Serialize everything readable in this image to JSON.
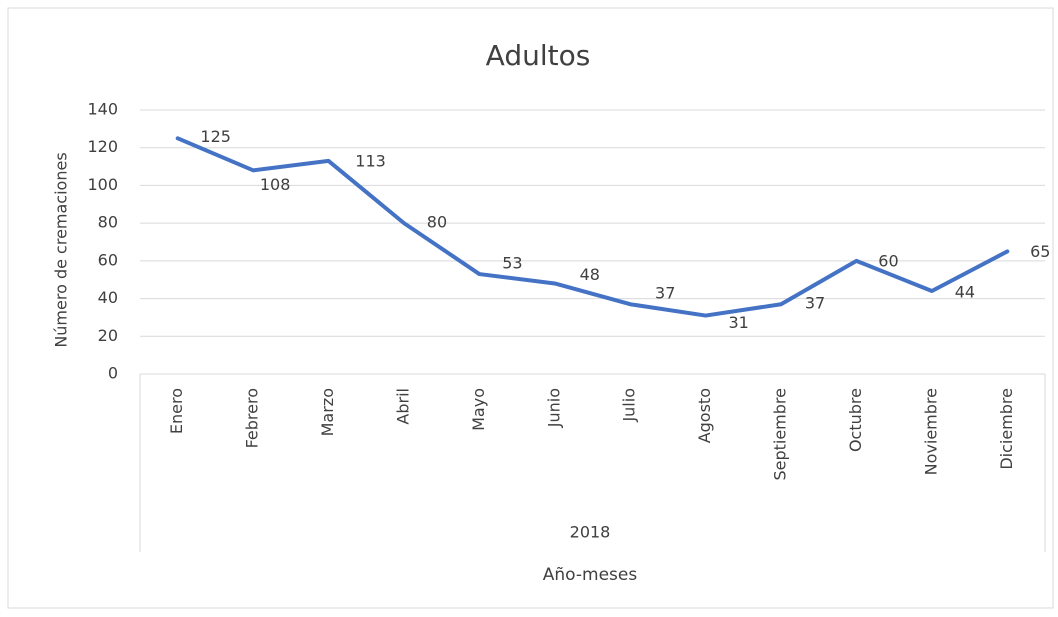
{
  "chart_data": {
    "type": "line",
    "title": "Adultos",
    "y_label": "Número de cremaciones",
    "x_label": "Año-meses",
    "group_label": "2018",
    "categories": [
      "Enero",
      "Febrero",
      "Marzo",
      "Abril",
      "Mayo",
      "Junio",
      "Julio",
      "Agosto",
      "Septiembre",
      "Octubre",
      "Noviembre",
      "Diciembre"
    ],
    "series": [
      {
        "name": "Adultos",
        "color": "#4472c4",
        "values": [
          125,
          108,
          113,
          80,
          53,
          48,
          37,
          31,
          37,
          60,
          44,
          65
        ]
      }
    ],
    "ylim": [
      0,
      140
    ],
    "yticks": [
      0,
      20,
      40,
      60,
      80,
      100,
      120,
      140
    ],
    "grid": true
  }
}
